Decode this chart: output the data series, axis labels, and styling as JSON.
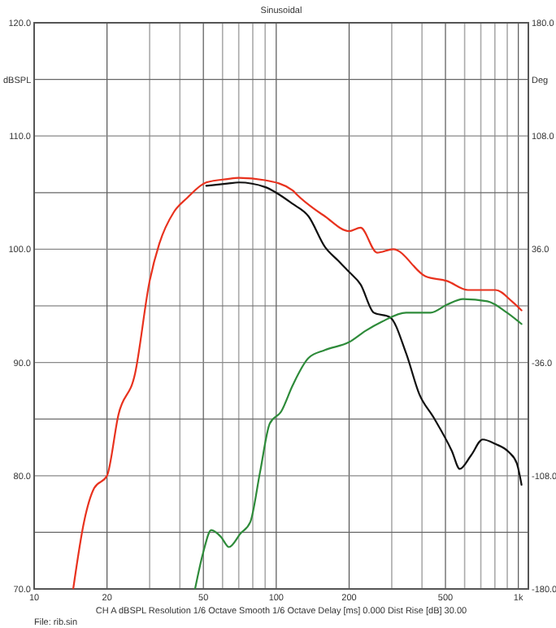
{
  "chart_data": {
    "type": "line",
    "title": "Sinusoidal",
    "ylabel": "dBSPL",
    "y2label": "Deg",
    "annotations": [
      "CH A  dBSPL  Resolution 1/6 Octave  Smooth 1/6 Octave  Delay [ms] 0.000  Dist Rise [dB] 30.00",
      "File: rib.sin"
    ],
    "log": "x",
    "grid": true,
    "line_style": "solid",
    "marker": "none",
    "xlim": [
      10,
      1100
    ],
    "ylim": [
      70,
      120
    ],
    "y2lim": [
      -180,
      180
    ],
    "xticks": [
      10,
      20,
      {
        "value": 30,
        "label": null
      },
      {
        "value": 40,
        "label": null
      },
      50,
      {
        "value": 60,
        "label": null
      },
      {
        "value": 70,
        "label": null
      },
      {
        "value": 80,
        "label": null
      },
      {
        "value": 90,
        "label": null
      },
      100,
      200,
      {
        "value": 300,
        "label": null
      },
      {
        "value": 400,
        "label": null
      },
      500,
      {
        "value": 600,
        "label": null
      },
      {
        "value": 700,
        "label": null
      },
      {
        "value": 800,
        "label": null
      },
      {
        "value": 900,
        "label": null
      },
      {
        "value": 1000,
        "label": "1k"
      }
    ],
    "yticks": [
      {
        "value": 70,
        "label": "70.0"
      },
      {
        "value": 75,
        "label": null
      },
      {
        "value": 80,
        "label": "80.0"
      },
      {
        "value": 85,
        "label": null
      },
      {
        "value": 90,
        "label": "90.0"
      },
      {
        "value": 95,
        "label": null
      },
      {
        "value": 100,
        "label": "100.0"
      },
      {
        "value": 105,
        "label": null
      },
      {
        "value": 110,
        "label": "110.0"
      },
      {
        "value": 115,
        "label": null
      },
      {
        "value": 120,
        "label": "120.0"
      }
    ],
    "y2ticks": [
      {
        "value": -180,
        "label": "-180.0"
      },
      {
        "value": -108,
        "label": "-108.0"
      },
      {
        "value": -36,
        "label": "-36.0"
      },
      {
        "value": 36,
        "label": "36.0"
      },
      {
        "value": 108,
        "label": "108.0"
      },
      {
        "value": 180,
        "label": "180.0"
      }
    ],
    "series": [
      {
        "color": "#e8321e",
        "x": [
          14.5,
          16.1,
          17.7,
          20,
          22.3,
          26.1,
          30,
          32.9,
          37.8,
          42.7,
          51.4,
          62.9,
          70.1,
          89.8,
          117,
          122,
          159,
          200,
          223,
          261,
          304,
          414,
          507,
          619,
          805,
          940,
          1031
        ],
        "values": [
          70,
          76,
          78.9,
          80,
          85.4,
          89,
          97.2,
          100.5,
          103.3,
          104.5,
          105.9,
          106.2,
          106.3,
          106.1,
          105.2,
          104.8,
          102.9,
          101.6,
          101.9,
          99.7,
          100,
          97.6,
          97.2,
          96.4,
          96.4,
          95.4,
          94.6
        ]
      },
      {
        "color": "#111111",
        "x": [
          51.4,
          62.9,
          70.1,
          89.8,
          117,
          136,
          159,
          180,
          200,
          223,
          253,
          295,
          344,
          390,
          448,
          531,
          573,
          638,
          712,
          805,
          912,
          985,
          1031
        ],
        "values": [
          105.6,
          105.8,
          105.9,
          105.5,
          104,
          102.9,
          100.2,
          99,
          98,
          96.9,
          94.4,
          94,
          90.8,
          87.2,
          85.1,
          82.2,
          80.6,
          81.8,
          83.2,
          82.8,
          82.1,
          81.1,
          79.2
        ]
      },
      {
        "color": "#2e8b3a",
        "x": [
          46.2,
          49.9,
          53.9,
          59.1,
          63.8,
          71.2,
          78.1,
          85.7,
          94,
          105,
          117,
          136,
          159,
          200,
          234,
          273,
          344,
          434,
          507,
          591,
          745,
          898,
          1031
        ],
        "values": [
          70,
          73.2,
          75.2,
          74.6,
          73.7,
          74.9,
          75.9,
          80.3,
          84.6,
          85.7,
          88,
          90.4,
          91.1,
          91.8,
          92.8,
          93.6,
          94.4,
          94.4,
          95.1,
          95.6,
          95.4,
          94.4,
          93.4
        ]
      }
    ]
  }
}
